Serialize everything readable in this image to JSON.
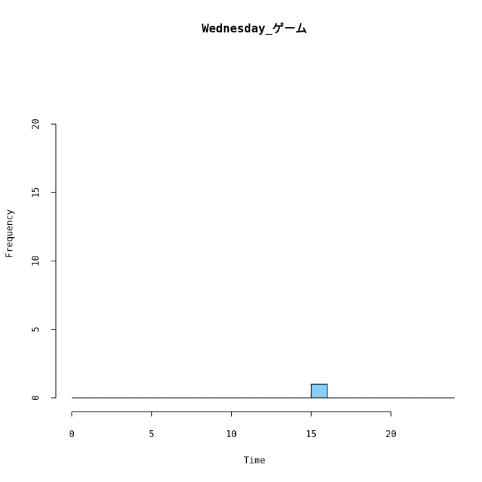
{
  "chart_data": {
    "type": "bar",
    "title": "Wednesday_ゲーム",
    "xlabel": "Time",
    "ylabel": "Frequency",
    "bin_width": 1,
    "bins": [
      {
        "start": 0,
        "end": 1,
        "count": 0
      },
      {
        "start": 1,
        "end": 2,
        "count": 0
      },
      {
        "start": 2,
        "end": 3,
        "count": 0
      },
      {
        "start": 3,
        "end": 4,
        "count": 0
      },
      {
        "start": 4,
        "end": 5,
        "count": 0
      },
      {
        "start": 5,
        "end": 6,
        "count": 0
      },
      {
        "start": 6,
        "end": 7,
        "count": 0
      },
      {
        "start": 7,
        "end": 8,
        "count": 0
      },
      {
        "start": 8,
        "end": 9,
        "count": 0
      },
      {
        "start": 9,
        "end": 10,
        "count": 0
      },
      {
        "start": 10,
        "end": 11,
        "count": 0
      },
      {
        "start": 11,
        "end": 12,
        "count": 0
      },
      {
        "start": 12,
        "end": 13,
        "count": 0
      },
      {
        "start": 13,
        "end": 14,
        "count": 0
      },
      {
        "start": 14,
        "end": 15,
        "count": 0
      },
      {
        "start": 15,
        "end": 16,
        "count": 1
      },
      {
        "start": 16,
        "end": 17,
        "count": 0
      },
      {
        "start": 17,
        "end": 18,
        "count": 0
      },
      {
        "start": 18,
        "end": 19,
        "count": 0
      },
      {
        "start": 19,
        "end": 20,
        "count": 0
      },
      {
        "start": 20,
        "end": 21,
        "count": 0
      },
      {
        "start": 21,
        "end": 22,
        "count": 0
      },
      {
        "start": 22,
        "end": 23,
        "count": 0
      },
      {
        "start": 23,
        "end": 24,
        "count": 0
      }
    ],
    "xlim": [
      0,
      24
    ],
    "ylim": [
      0,
      20
    ],
    "x_ticks": [
      0,
      5,
      10,
      15,
      20
    ],
    "y_ticks": [
      0,
      5,
      10,
      15,
      20
    ],
    "bar_color": "#87cefa",
    "bar_border_color": "#000000",
    "grid": false,
    "legend": "none"
  }
}
